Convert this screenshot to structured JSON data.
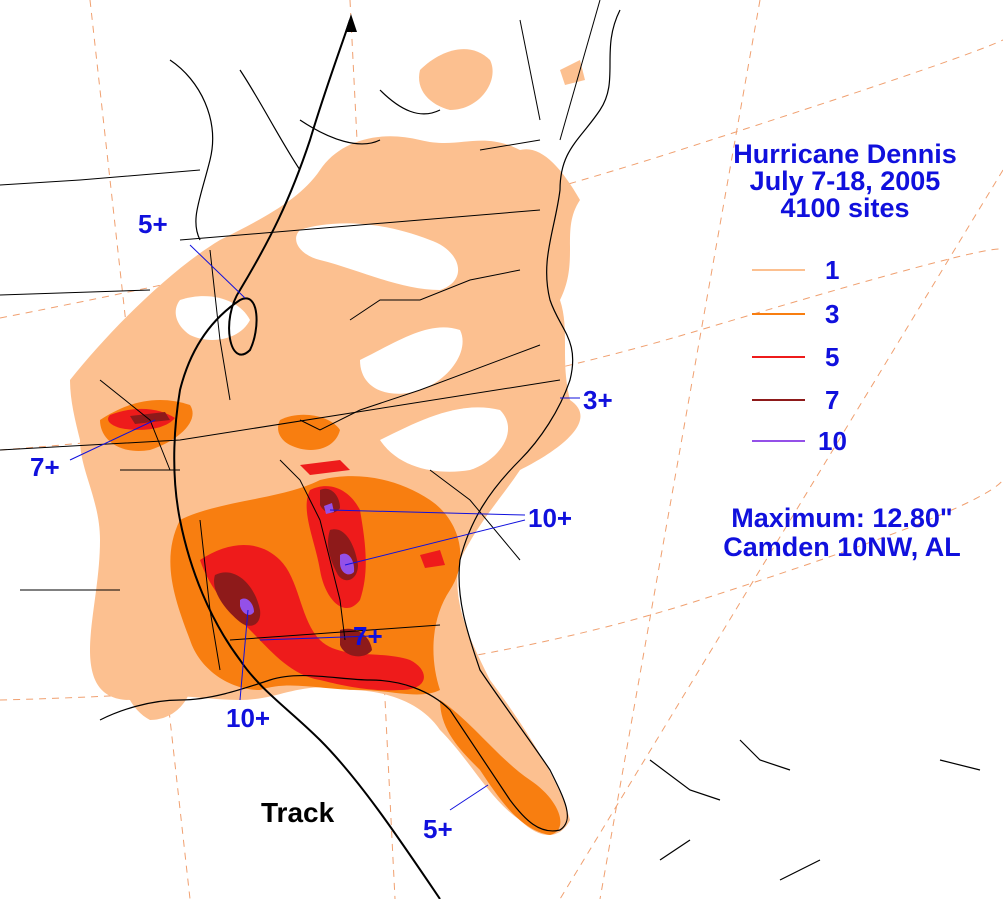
{
  "title": {
    "line1": "Hurricane Dennis",
    "line2": "July 7-18, 2005",
    "line3": "4100 sites"
  },
  "legend": [
    {
      "label": "1",
      "color": "#fcc090"
    },
    {
      "label": "3",
      "color": "#f87e10"
    },
    {
      "label": "5",
      "color": "#ee1b1b"
    },
    {
      "label": "7",
      "color": "#8e1a1a"
    },
    {
      "label": "10",
      "color": "#9450e8"
    }
  ],
  "maximum": {
    "line1": "Maximum: 12.80\"",
    "line2": "Camden 10NW, AL"
  },
  "annotations": {
    "five_plus_north": "5+",
    "seven_plus_west": "7+",
    "three_plus_east": "3+",
    "ten_plus_georgia": "10+",
    "seven_plus_florida": "7+",
    "ten_plus_alabama": "10+",
    "five_plus_south": "5+"
  },
  "track_label": "Track",
  "colors": {
    "shade1": "#fcc090",
    "shade3": "#f87e10",
    "shade5": "#ee1b1b",
    "shade7": "#8e1a1a",
    "shade10": "#9450e8",
    "text": "#1010dd",
    "grid": "#f0a070"
  }
}
